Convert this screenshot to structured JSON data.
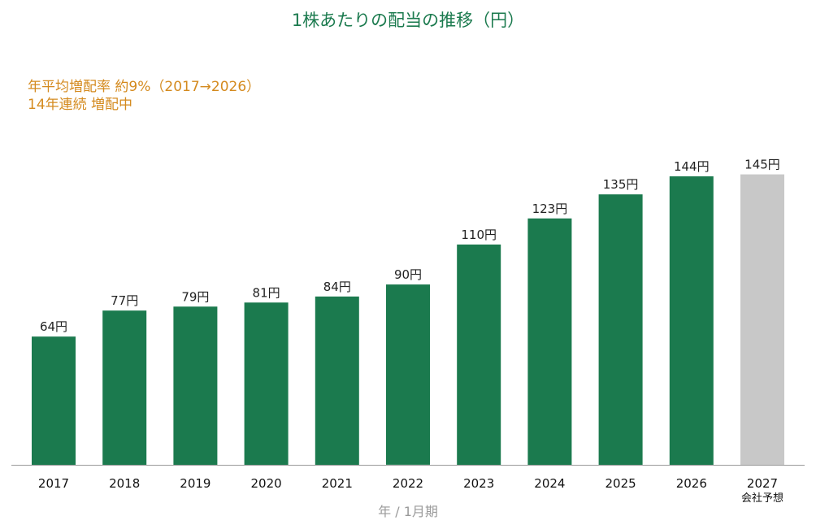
{
  "chart_data": {
    "type": "bar",
    "title": "1株あたりの配当の推移（円）",
    "annotations": [
      "年平均増配率 約9%（2017→2026）",
      "14年連続 増配中"
    ],
    "xlabel": "年 / 1月期",
    "ylabel": "",
    "categories": [
      "2017",
      "2018",
      "2019",
      "2020",
      "2021",
      "2022",
      "2023",
      "2024",
      "2025",
      "2026",
      "2027"
    ],
    "category_sublabels": [
      "",
      "",
      "",
      "",
      "",
      "",
      "",
      "",
      "",
      "",
      "会社予想"
    ],
    "values": [
      64,
      77,
      79,
      81,
      84,
      90,
      110,
      123,
      135,
      144,
      145
    ],
    "value_labels": [
      "64円",
      "77円",
      "79円",
      "81円",
      "84円",
      "90円",
      "110円",
      "123円",
      "135円",
      "144円",
      "145円"
    ],
    "forecast_index": 10,
    "ylim": [
      0,
      150
    ],
    "grid": false,
    "colors": {
      "actual": "#1b7a4e",
      "forecast": "#c8c8c8",
      "forecast_label": "#999999",
      "title": "#1b7a4e",
      "annotation": "#d48a1e"
    }
  }
}
